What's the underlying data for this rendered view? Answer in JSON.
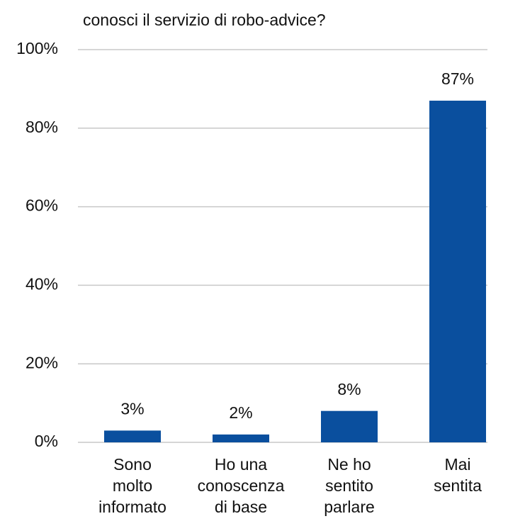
{
  "chart_data": {
    "type": "bar",
    "title": "conosci il servizio di robo-advice?",
    "categories": [
      "Sono\nmolto\ninformato",
      "Ho una\nconoscenza\ndi base",
      "Ne ho\nsentito\nparlare",
      "Mai\nsentita"
    ],
    "values": [
      3,
      2,
      8,
      87
    ],
    "value_labels": [
      "3%",
      "2%",
      "8%",
      "87%"
    ],
    "color": "#0a4f9e",
    "ylim": [
      0,
      100
    ],
    "yticks": [
      {
        "value": 0,
        "label": "0%"
      },
      {
        "value": 20,
        "label": "20%"
      },
      {
        "value": 40,
        "label": "40%"
      },
      {
        "value": 60,
        "label": "60%"
      },
      {
        "value": 80,
        "label": "80%"
      },
      {
        "value": 100,
        "label": "100%"
      }
    ],
    "grid": true
  }
}
